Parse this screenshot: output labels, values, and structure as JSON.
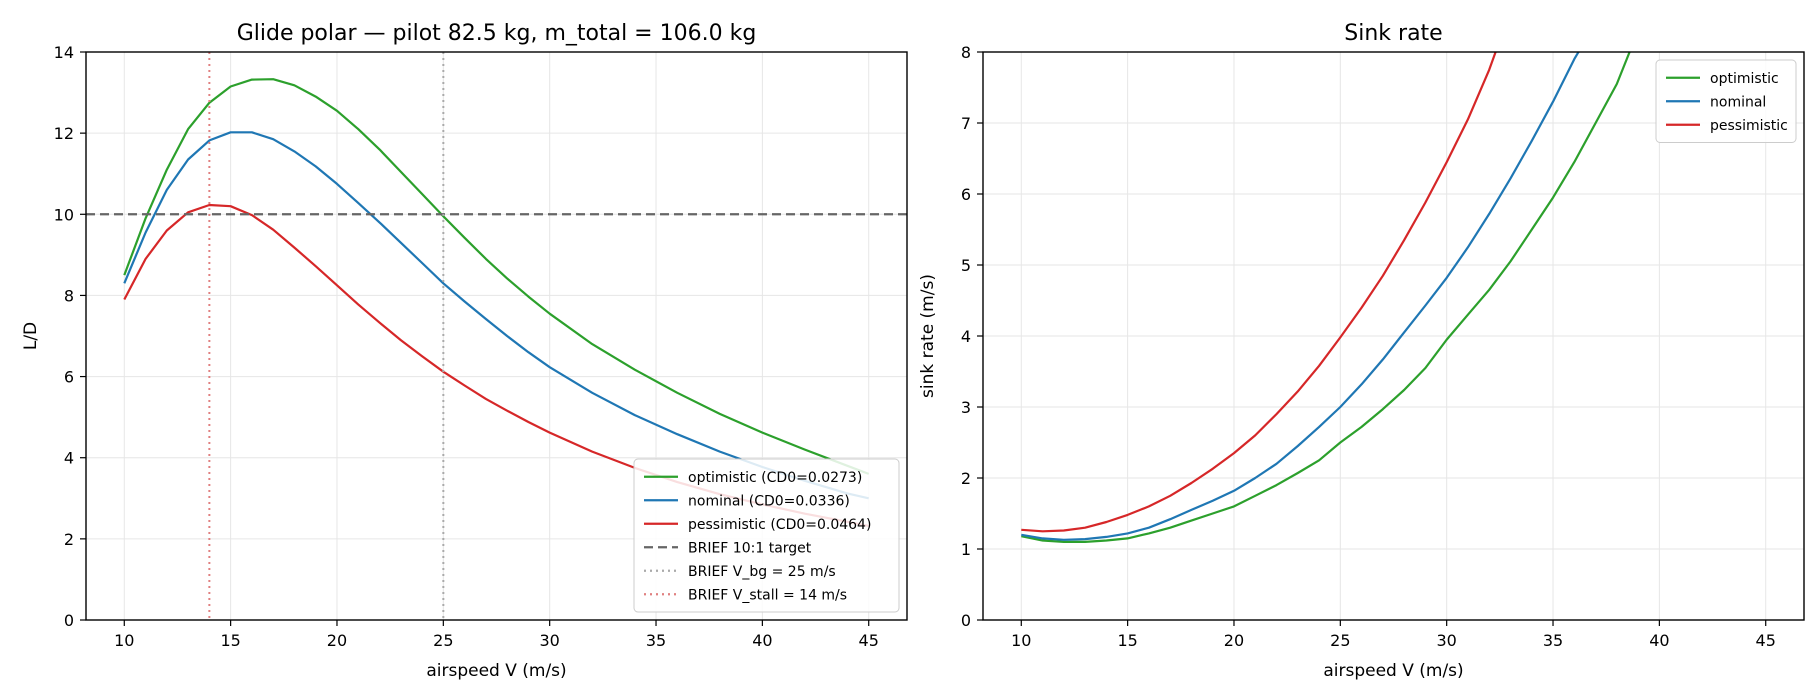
{
  "chart_data": [
    {
      "type": "line",
      "title": "Glide polar — pilot 82.5 kg, m_total = 106.0 kg",
      "xlabel": "airspeed V (m/s)",
      "ylabel": "L/D",
      "xlim": [
        8.2,
        46.8
      ],
      "ylim": [
        0,
        14
      ],
      "xticks": [
        "10",
        "15",
        "20",
        "25",
        "30",
        "35",
        "40",
        "45"
      ],
      "yticks": [
        "0",
        "2",
        "4",
        "6",
        "8",
        "10",
        "12",
        "14"
      ],
      "grid": true,
      "legend": "lower-right",
      "series": [
        {
          "name": "optimistic  (CD0=0.0273)",
          "color": "#2ca02c",
          "style": "solid",
          "points": [
            [
              10,
              8.5
            ],
            [
              11,
              9.9
            ],
            [
              12,
              11.1
            ],
            [
              13,
              12.1
            ],
            [
              14,
              12.75
            ],
            [
              15,
              13.15
            ],
            [
              16,
              13.32
            ],
            [
              17,
              13.33
            ],
            [
              18,
              13.18
            ],
            [
              19,
              12.9
            ],
            [
              20,
              12.55
            ],
            [
              21,
              12.1
            ],
            [
              22,
              11.6
            ],
            [
              23,
              11.05
            ],
            [
              24,
              10.5
            ],
            [
              25,
              9.95
            ],
            [
              26,
              9.42
            ],
            [
              27,
              8.9
            ],
            [
              28,
              8.42
            ],
            [
              29,
              7.97
            ],
            [
              30,
              7.55
            ],
            [
              32,
              6.8
            ],
            [
              34,
              6.17
            ],
            [
              36,
              5.6
            ],
            [
              38,
              5.08
            ],
            [
              40,
              4.62
            ],
            [
              42,
              4.2
            ],
            [
              44,
              3.8
            ],
            [
              45,
              3.6
            ]
          ]
        },
        {
          "name": "nominal  (CD0=0.0336)",
          "color": "#1f77b4",
          "style": "solid",
          "points": [
            [
              10,
              8.3
            ],
            [
              11,
              9.55
            ],
            [
              12,
              10.6
            ],
            [
              13,
              11.35
            ],
            [
              14,
              11.82
            ],
            [
              15,
              12.02
            ],
            [
              16,
              12.02
            ],
            [
              17,
              11.85
            ],
            [
              18,
              11.55
            ],
            [
              19,
              11.18
            ],
            [
              20,
              10.75
            ],
            [
              21,
              10.28
            ],
            [
              22,
              9.8
            ],
            [
              23,
              9.3
            ],
            [
              24,
              8.8
            ],
            [
              25,
              8.3
            ],
            [
              26,
              7.85
            ],
            [
              27,
              7.42
            ],
            [
              28,
              7.0
            ],
            [
              29,
              6.6
            ],
            [
              30,
              6.23
            ],
            [
              32,
              5.6
            ],
            [
              34,
              5.05
            ],
            [
              36,
              4.58
            ],
            [
              38,
              4.15
            ],
            [
              40,
              3.77
            ],
            [
              42,
              3.43
            ],
            [
              44,
              3.12
            ],
            [
              45,
              3.0
            ]
          ]
        },
        {
          "name": "pessimistic  (CD0=0.0464)",
          "color": "#d62728",
          "style": "solid",
          "points": [
            [
              10,
              7.9
            ],
            [
              11,
              8.9
            ],
            [
              12,
              9.6
            ],
            [
              13,
              10.05
            ],
            [
              14,
              10.23
            ],
            [
              15,
              10.2
            ],
            [
              16,
              9.98
            ],
            [
              17,
              9.62
            ],
            [
              18,
              9.18
            ],
            [
              19,
              8.72
            ],
            [
              20,
              8.25
            ],
            [
              21,
              7.78
            ],
            [
              22,
              7.33
            ],
            [
              23,
              6.9
            ],
            [
              24,
              6.5
            ],
            [
              25,
              6.12
            ],
            [
              26,
              5.78
            ],
            [
              27,
              5.45
            ],
            [
              28,
              5.16
            ],
            [
              29,
              4.88
            ],
            [
              30,
              4.62
            ],
            [
              32,
              4.15
            ],
            [
              34,
              3.75
            ],
            [
              36,
              3.4
            ],
            [
              38,
              3.1
            ],
            [
              40,
              2.85
            ],
            [
              42,
              2.62
            ],
            [
              44,
              2.42
            ],
            [
              45,
              2.32
            ]
          ]
        },
        {
          "name": "BRIEF 10:1 target",
          "color": "#666666",
          "style": "dashed",
          "kind": "hline",
          "value": 10
        },
        {
          "name": "BRIEF V_bg = 25 m/s",
          "color": "#aaaaaa",
          "style": "dotted",
          "kind": "vline",
          "value": 25
        },
        {
          "name": "BRIEF V_stall = 14 m/s",
          "color": "#e08080",
          "style": "dotted",
          "kind": "vline",
          "value": 14
        }
      ]
    },
    {
      "type": "line",
      "title": "Sink rate",
      "xlabel": "airspeed V (m/s)",
      "ylabel": "sink rate (m/s)",
      "xlim": [
        8.2,
        46.8
      ],
      "ylim": [
        0,
        8
      ],
      "xticks": [
        "10",
        "15",
        "20",
        "25",
        "30",
        "35",
        "40",
        "45"
      ],
      "yticks": [
        "0",
        "1",
        "2",
        "3",
        "4",
        "5",
        "6",
        "7",
        "8"
      ],
      "grid": true,
      "legend": "upper-right",
      "series": [
        {
          "name": "optimistic",
          "color": "#2ca02c",
          "style": "solid",
          "points": [
            [
              10,
              1.18
            ],
            [
              11,
              1.12
            ],
            [
              12,
              1.1
            ],
            [
              13,
              1.1
            ],
            [
              14,
              1.12
            ],
            [
              15,
              1.15
            ],
            [
              16,
              1.22
            ],
            [
              17,
              1.3
            ],
            [
              18,
              1.4
            ],
            [
              19,
              1.5
            ],
            [
              20,
              1.6
            ],
            [
              21,
              1.75
            ],
            [
              22,
              1.9
            ],
            [
              23,
              2.07
            ],
            [
              24,
              2.25
            ],
            [
              25,
              2.5
            ],
            [
              26,
              2.72
            ],
            [
              27,
              2.97
            ],
            [
              28,
              3.24
            ],
            [
              29,
              3.55
            ],
            [
              30,
              3.95
            ],
            [
              31,
              4.3
            ],
            [
              32,
              4.65
            ],
            [
              33,
              5.05
            ],
            [
              34,
              5.5
            ],
            [
              35,
              5.95
            ],
            [
              36,
              6.45
            ],
            [
              37,
              7.0
            ],
            [
              38,
              7.55
            ],
            [
              38.6,
              8.0
            ]
          ]
        },
        {
          "name": "nominal",
          "color": "#1f77b4",
          "style": "solid",
          "points": [
            [
              10,
              1.2
            ],
            [
              11,
              1.15
            ],
            [
              12,
              1.13
            ],
            [
              13,
              1.14
            ],
            [
              14,
              1.17
            ],
            [
              15,
              1.22
            ],
            [
              16,
              1.3
            ],
            [
              17,
              1.42
            ],
            [
              18,
              1.55
            ],
            [
              19,
              1.68
            ],
            [
              20,
              1.82
            ],
            [
              21,
              2.0
            ],
            [
              22,
              2.2
            ],
            [
              23,
              2.45
            ],
            [
              24,
              2.72
            ],
            [
              25,
              3.0
            ],
            [
              26,
              3.32
            ],
            [
              27,
              3.67
            ],
            [
              28,
              4.05
            ],
            [
              29,
              4.43
            ],
            [
              30,
              4.82
            ],
            [
              31,
              5.25
            ],
            [
              32,
              5.72
            ],
            [
              33,
              6.22
            ],
            [
              34,
              6.75
            ],
            [
              35,
              7.3
            ],
            [
              36,
              7.9
            ],
            [
              36.2,
              8.0
            ]
          ]
        },
        {
          "name": "pessimistic",
          "color": "#d62728",
          "style": "solid",
          "points": [
            [
              10,
              1.27
            ],
            [
              11,
              1.25
            ],
            [
              12,
              1.26
            ],
            [
              13,
              1.3
            ],
            [
              14,
              1.38
            ],
            [
              15,
              1.48
            ],
            [
              16,
              1.6
            ],
            [
              17,
              1.75
            ],
            [
              18,
              1.93
            ],
            [
              19,
              2.13
            ],
            [
              20,
              2.35
            ],
            [
              21,
              2.6
            ],
            [
              22,
              2.9
            ],
            [
              23,
              3.22
            ],
            [
              24,
              3.58
            ],
            [
              25,
              3.98
            ],
            [
              26,
              4.4
            ],
            [
              27,
              4.85
            ],
            [
              28,
              5.35
            ],
            [
              29,
              5.88
            ],
            [
              30,
              6.45
            ],
            [
              31,
              7.05
            ],
            [
              32,
              7.75
            ],
            [
              32.3,
              8.0
            ]
          ]
        }
      ]
    }
  ]
}
